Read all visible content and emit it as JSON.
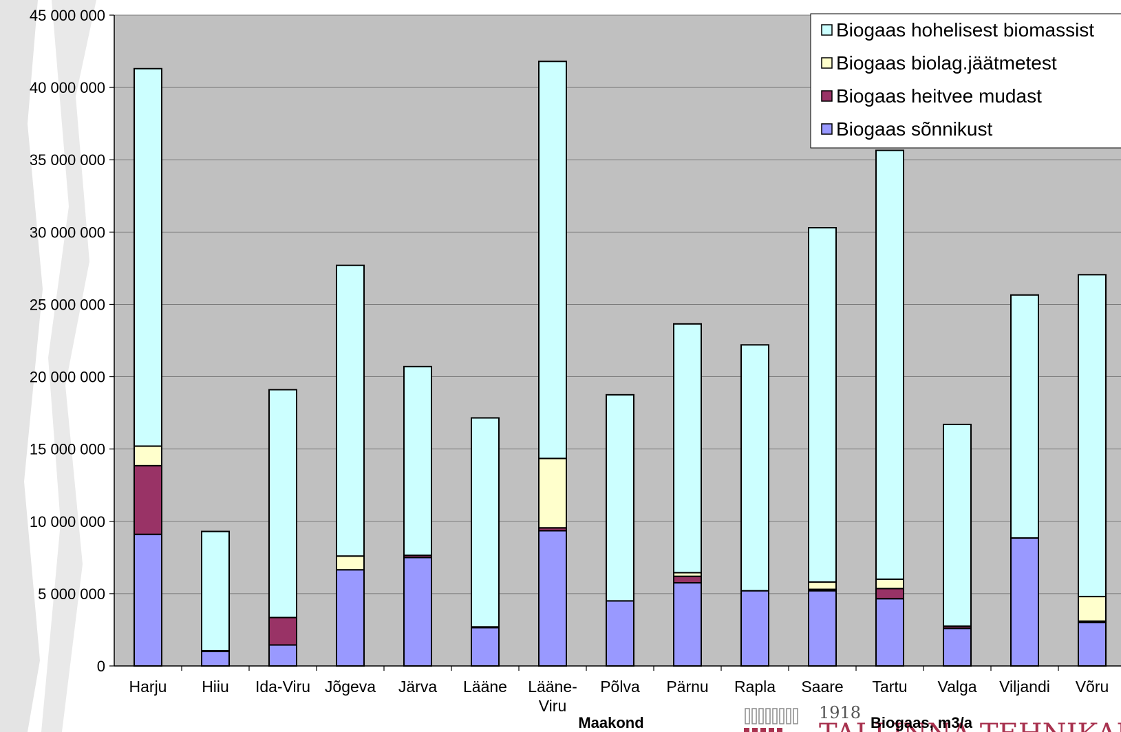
{
  "chart_data": {
    "type": "bar",
    "stacked": true,
    "categories": [
      "Harju",
      "Hiiu",
      "Ida-Viru",
      "Jõgeva",
      "Järva",
      "Lääne",
      "Lääne-Viru",
      "Põlva",
      "Pärnu",
      "Rapla",
      "Saare",
      "Tartu",
      "Valga",
      "Viljandi",
      "Võru"
    ],
    "series": [
      {
        "name": "Biogaas sõnnikust",
        "color": "#9999ff",
        "values": [
          9100000,
          1000000,
          1450000,
          6650000,
          7500000,
          2650000,
          9350000,
          4500000,
          5750000,
          5200000,
          5200000,
          4650000,
          2600000,
          8850000,
          3000000
        ]
      },
      {
        "name": "Biogaas heitvee mudast",
        "color": "#993366",
        "values": [
          4750000,
          50000,
          1900000,
          0,
          150000,
          50000,
          200000,
          0,
          450000,
          0,
          100000,
          700000,
          150000,
          0,
          100000
        ]
      },
      {
        "name": "Biogaas biolag.jäätmetest",
        "color": "#ffffcc",
        "values": [
          1350000,
          0,
          0,
          950000,
          0,
          0,
          4800000,
          0,
          250000,
          0,
          500000,
          650000,
          0,
          0,
          1700000
        ]
      },
      {
        "name": "Biogaas hohelisest biomassist",
        "color": "#ccffff",
        "values": [
          26100000,
          8250000,
          15750000,
          20100000,
          13050000,
          14450000,
          27450000,
          14250000,
          17200000,
          17000000,
          24500000,
          29650000,
          13950000,
          16800000,
          22250000
        ]
      }
    ],
    "legend_order": [
      "Biogaas hohelisest biomassist",
      "Biogaas biolag.jäätmetest",
      "Biogaas heitvee mudast",
      "Biogaas sõnnikust"
    ],
    "legend_position": "top-right",
    "y_ticks": [
      "0",
      "5 000 000",
      "10 000 000",
      "15 000 000",
      "20 000 000",
      "25 000 000",
      "30 000 000",
      "35 000 000",
      "40 000 000",
      "45 000 000"
    ],
    "ylim": [
      0,
      45000000
    ],
    "xlabel": "Maakond",
    "title": "Biogaas, m3/a",
    "grid": true,
    "plot_background": "#c0c0c0"
  },
  "logo": {
    "year": "1918",
    "text": "TALLINNA TEHNIKAÜL"
  }
}
